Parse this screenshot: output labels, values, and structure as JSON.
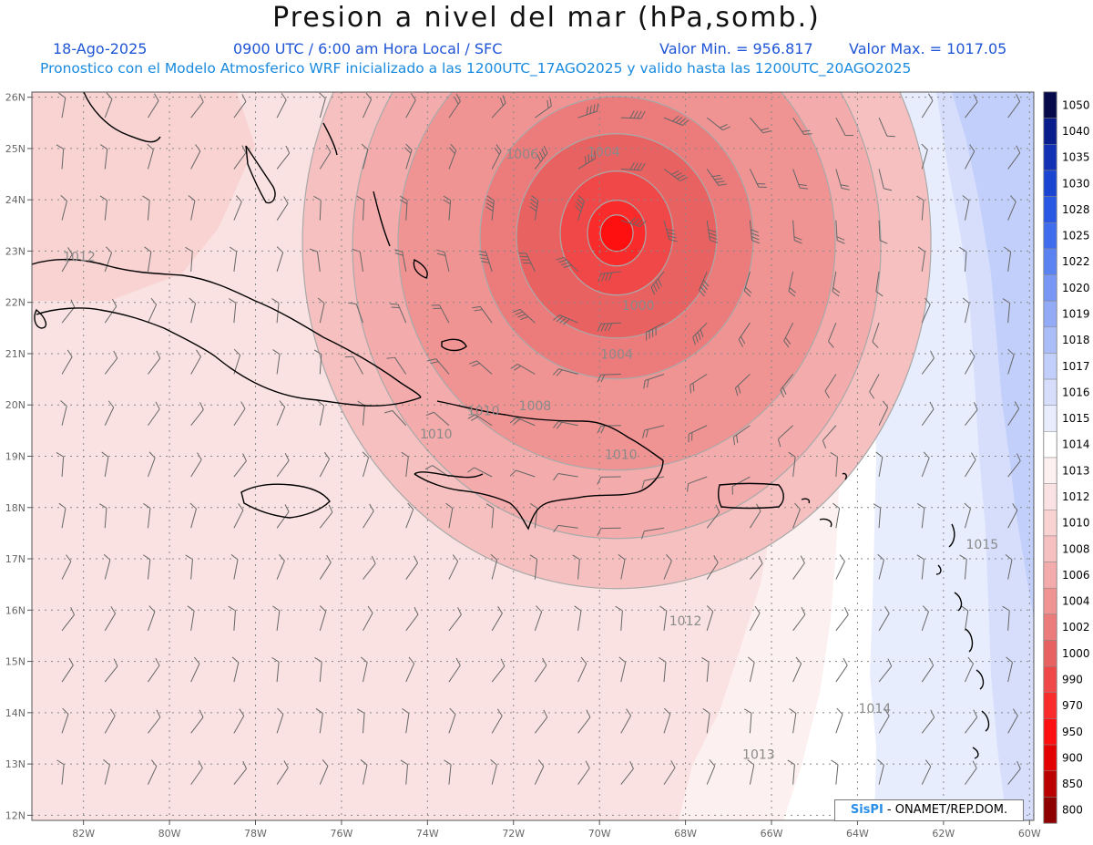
{
  "title": "Presion a nivel del mar (hPa,somb.)",
  "date": "18-Ago-2025",
  "time_label": "0900 UTC / 6:00 am Hora Local / SFC",
  "min_label": "Valor Min. = 956.817",
  "max_label": "Valor Max. = 1017.05",
  "forecast_label": "Pronostico con el Modelo Atmosferico WRF inicializado a las 1200UTC_17AGO2025 y valido hasta las  1200UTC_20AGO2025",
  "credit": {
    "logo": "SisPI",
    "text": "- ONAMET/REP.DOM."
  },
  "map": {
    "lon_range": [
      -83.2,
      -59.9
    ],
    "lat_range": [
      11.9,
      26.1
    ],
    "lon_ticks": [
      {
        "value": -82,
        "label": "82W"
      },
      {
        "value": -80,
        "label": "80W"
      },
      {
        "value": -78,
        "label": "78W"
      },
      {
        "value": -76,
        "label": "76W"
      },
      {
        "value": -74,
        "label": "74W"
      },
      {
        "value": -72,
        "label": "72W"
      },
      {
        "value": -70,
        "label": "70W"
      },
      {
        "value": -68,
        "label": "68W"
      },
      {
        "value": -66,
        "label": "66W"
      },
      {
        "value": -64,
        "label": "64W"
      },
      {
        "value": -62,
        "label": "62W"
      },
      {
        "value": -60,
        "label": "60W"
      }
    ],
    "lat_ticks": [
      {
        "value": 26,
        "label": "26N"
      },
      {
        "value": 25,
        "label": "25N"
      },
      {
        "value": 24,
        "label": "24N"
      },
      {
        "value": 23,
        "label": "23N"
      },
      {
        "value": 22,
        "label": "22N"
      },
      {
        "value": 21,
        "label": "21N"
      },
      {
        "value": 20,
        "label": "20N"
      },
      {
        "value": 19,
        "label": "19N"
      },
      {
        "value": 18,
        "label": "18N"
      },
      {
        "value": 17,
        "label": "17N"
      },
      {
        "value": 16,
        "label": "16N"
      },
      {
        "value": 15,
        "label": "15N"
      },
      {
        "value": 14,
        "label": "14N"
      },
      {
        "value": 13,
        "label": "13N"
      },
      {
        "value": 12,
        "label": "12N"
      }
    ],
    "gridlines": true,
    "storm_center": {
      "lon": -69.6,
      "lat": 23.35
    },
    "contour_labels": [
      {
        "text": "1006",
        "lon": -71.8,
        "lat": 24.8
      },
      {
        "text": "1004",
        "lon": -69.9,
        "lat": 24.85
      },
      {
        "text": "1000",
        "lon": -69.1,
        "lat": 21.85
      },
      {
        "text": "1004",
        "lon": -69.6,
        "lat": 20.9
      },
      {
        "text": "1008",
        "lon": -71.5,
        "lat": 19.9
      },
      {
        "text": "1010",
        "lon": -72.7,
        "lat": 19.8
      },
      {
        "text": "1010",
        "lon": -73.8,
        "lat": 19.35
      },
      {
        "text": "1010",
        "lon": -69.5,
        "lat": 18.95
      },
      {
        "text": "1012",
        "lon": -82.1,
        "lat": 22.8
      },
      {
        "text": "1012",
        "lon": -68.0,
        "lat": 15.7
      },
      {
        "text": "1013",
        "lon": -66.3,
        "lat": 13.1
      },
      {
        "text": "1014",
        "lon": -63.6,
        "lat": 14.0
      },
      {
        "text": "1015",
        "lon": -61.1,
        "lat": 17.2
      }
    ]
  },
  "legend": {
    "levels": [
      {
        "label": "1050",
        "color": "#060a4a"
      },
      {
        "label": "1040",
        "color": "#0a1d8c"
      },
      {
        "label": "1035",
        "color": "#1231b5"
      },
      {
        "label": "1030",
        "color": "#1a45d3"
      },
      {
        "label": "1028",
        "color": "#2858e4"
      },
      {
        "label": "1025",
        "color": "#3f6ded"
      },
      {
        "label": "1022",
        "color": "#5a82f1"
      },
      {
        "label": "1020",
        "color": "#7896f4"
      },
      {
        "label": "1019",
        "color": "#93aaf6"
      },
      {
        "label": "1018",
        "color": "#abbdf8"
      },
      {
        "label": "1017",
        "color": "#c2cffa"
      },
      {
        "label": "1016",
        "color": "#d6defc"
      },
      {
        "label": "1015",
        "color": "#e8edfd"
      },
      {
        "label": "1014",
        "color": "#ffffff"
      },
      {
        "label": "1013",
        "color": "#fdf0f0"
      },
      {
        "label": "1012",
        "color": "#fbe2e2"
      },
      {
        "label": "1010",
        "color": "#f9d2d2"
      },
      {
        "label": "1008",
        "color": "#f6c0c0"
      },
      {
        "label": "1006",
        "color": "#f3abab"
      },
      {
        "label": "1004",
        "color": "#f09393"
      },
      {
        "label": "1002",
        "color": "#ec7b7b"
      },
      {
        "label": "1000",
        "color": "#e96262"
      },
      {
        "label": "990",
        "color": "#f04848"
      },
      {
        "label": "970",
        "color": "#fa2b2b"
      },
      {
        "label": "950",
        "color": "#ff1010"
      },
      {
        "label": "900",
        "color": "#e20000"
      },
      {
        "label": "850",
        "color": "#ba0000"
      },
      {
        "label": "800",
        "color": "#8e0000"
      }
    ]
  }
}
